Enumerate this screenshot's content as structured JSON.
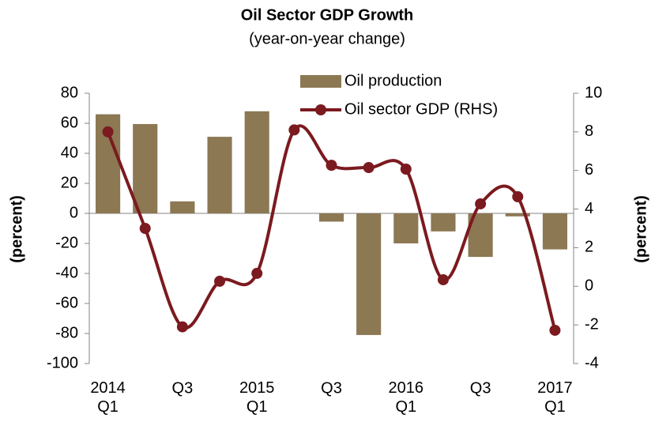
{
  "chart_data": {
    "type": "bar",
    "title": "Oil Sector GDP Growth",
    "subtitle": "(year-on-year change)",
    "ylabel": "(percent)",
    "y2label": "(percent)",
    "categories": [
      "2014\nQ1",
      null,
      "Q3",
      null,
      "2015\nQ1",
      null,
      "Q3",
      null,
      "2016\nQ1",
      null,
      "Q3",
      null,
      "2017\nQ1"
    ],
    "series": [
      {
        "name": "Oil production",
        "type": "bar",
        "color": "#8c7853",
        "values": [
          66,
          59.5,
          8,
          51,
          68,
          0,
          -5.5,
          -81,
          -20,
          -12,
          -29,
          -2,
          -24
        ]
      },
      {
        "name": "Oil sector GDP (RHS)",
        "type": "line",
        "axis": "y2",
        "color": "#7b1a1f",
        "values": [
          8.0,
          3.0,
          -2.1,
          0.26,
          0.67,
          8.1,
          6.27,
          6.15,
          6.07,
          0.34,
          4.27,
          4.64,
          -2.28
        ]
      }
    ],
    "ylim": [
      -100,
      80
    ],
    "yticks": [
      -100,
      -80,
      -60,
      -40,
      -20,
      0,
      20,
      40,
      60,
      80
    ],
    "y2lim": [
      -4,
      10
    ],
    "y2ticks": [
      -4,
      -2,
      0,
      2,
      4,
      6,
      8,
      10
    ],
    "legend": "top-right"
  }
}
